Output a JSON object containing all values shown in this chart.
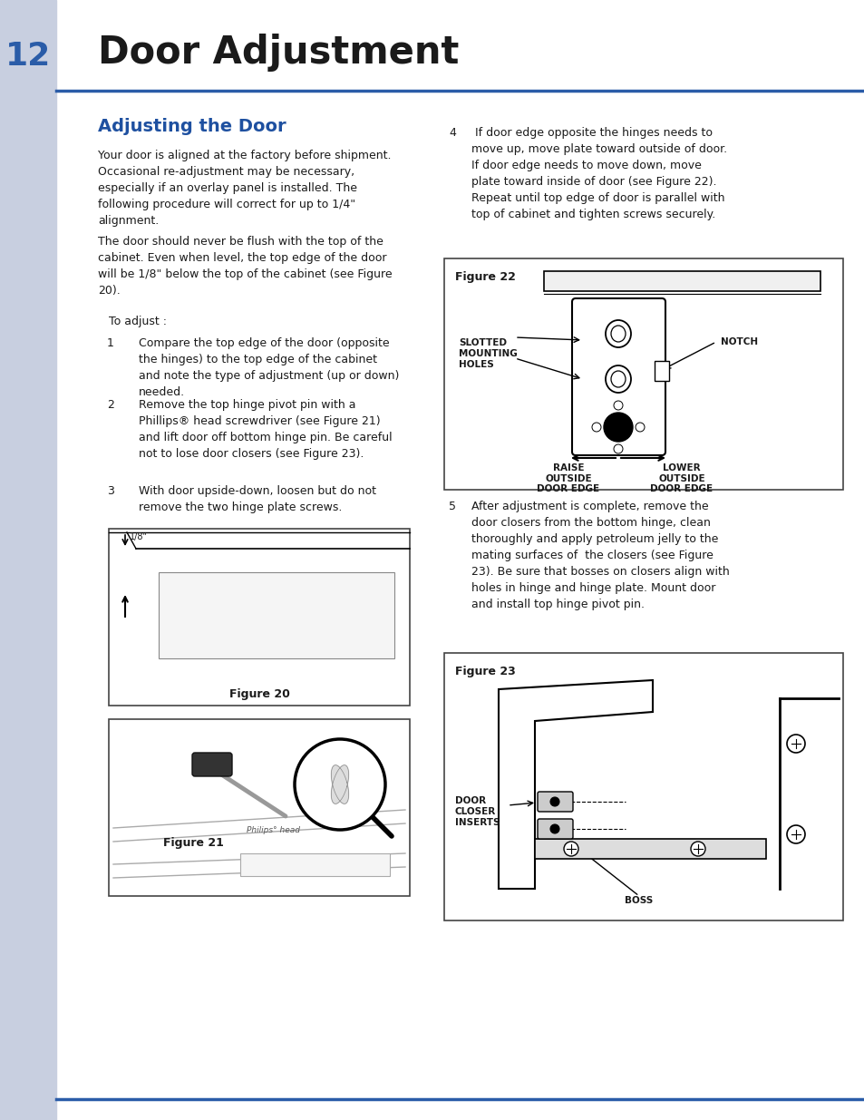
{
  "page_number": "12",
  "page_title": "Door Adjustment",
  "section_title": "Adjusting the Door",
  "sidebar_color": "#c8cfe0",
  "header_line_color": "#2a5ca8",
  "title_color": "#1a1a1a",
  "section_title_color": "#1e50a0",
  "number_color": "#2a5ca8",
  "body_text_color": "#1a1a1a",
  "body_text_size": 9.0,
  "para1": "Your door is aligned at the factory before shipment.\nOccasional re-adjustment may be necessary,\nespecially if an overlay panel is installed. The\nfollowing procedure will correct for up to 1/4\"\nalignment.",
  "para2": "The door should never be flush with the top of the\ncabinet. Even when level, the top edge of the door\nwill be 1/8\" below the top of the cabinet (see Figure\n20).",
  "para3": "To adjust :",
  "step1": "Compare the top edge of the door (opposite\nthe hinges) to the top edge of the cabinet\nand note the type of adjustment (up or down)\nneeded.",
  "step2": "Remove the top hinge pivot pin with a\nPhillips® head screwdriver (see Figure 21)\nand lift door off bottom hinge pin. Be careful\nnot to lose door closers (see Figure 23).",
  "step3": "With door upside-down, loosen but do not\nremove the two hinge plate screws.",
  "step4": " If door edge opposite the hinges needs to\nmove up, move plate toward outside of door.\nIf door edge needs to move down, move\nplate toward inside of door (see Figure 22).\nRepeat until top edge of door is parallel with\ntop of cabinet and tighten screws securely.",
  "step5": "After adjustment is complete, remove the\ndoor closers from the bottom hinge, clean\nthoroughly and apply petroleum jelly to the\nmating surfaces of  the closers (see Figure\n23). Be sure that bosses on closers align with\nholes in hinge and hinge plate. Mount door\nand install top hinge pivot pin.",
  "fig20_label": "Figure 20",
  "fig21_label": "Figure 21",
  "fig22_label": "Figure 22",
  "fig23_label": "Figure 23",
  "footer_line_color": "#2a5ca8",
  "background_color": "#ffffff"
}
